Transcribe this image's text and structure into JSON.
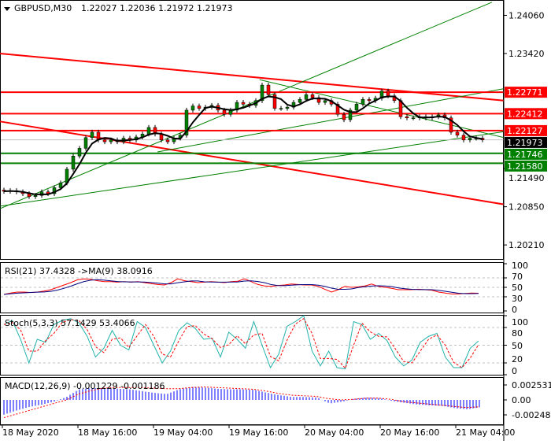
{
  "header": {
    "symbol_timeframe": "GBPUSD,M30",
    "ohlc": "1.22027 1.22036 1.21972 1.21973"
  },
  "colors": {
    "bull": "#008000",
    "bear": "#ff0000",
    "ma": "#000000",
    "rsi": "#ff0000",
    "rsi_ma": "#000080",
    "stoch_main": "#20b2aa",
    "stoch_signal": "#ff0000",
    "macd_hist": "#0000ff",
    "macd_signal": "#ff0000",
    "support": "#008000",
    "resistance": "#ff0000",
    "current_price": "#000000"
  },
  "chart_data": [
    {
      "type": "candlestick",
      "panel": "main",
      "ylim": [
        1.2008,
        1.2432
      ],
      "price_ticks": [
        "1.24060",
        "1.23420",
        "1.21490",
        "1.20850",
        "1.20210"
      ],
      "time_labels": [
        "18 May 2020",
        "18 May 16:00",
        "19 May 04:00",
        "19 May 16:00",
        "20 May 04:00",
        "20 May 16:00",
        "21 May 04:00"
      ],
      "closes": [
        1.2111,
        1.2112,
        1.211,
        1.2107,
        1.2102,
        1.2104,
        1.211,
        1.2107,
        1.2117,
        1.2125,
        1.2148,
        1.217,
        1.2183,
        1.2201,
        1.221,
        1.2197,
        1.2194,
        1.2197,
        1.2194,
        1.22,
        1.2197,
        1.2202,
        1.2207,
        1.2218,
        1.2207,
        1.2197,
        1.2194,
        1.22,
        1.2205,
        1.2247,
        1.2254,
        1.225,
        1.2252,
        1.2255,
        1.2247,
        1.224,
        1.2247,
        1.226,
        1.2257,
        1.2255,
        1.2263,
        1.2289,
        1.2273,
        1.225,
        1.225,
        1.2252,
        1.226,
        1.2265,
        1.2273,
        1.2268,
        1.226,
        1.2263,
        1.2257,
        1.224,
        1.2231,
        1.2247,
        1.2257,
        1.2265,
        1.2263,
        1.2267,
        1.2279,
        1.2271,
        1.2263,
        1.2236,
        1.2234,
        1.2234,
        1.2236,
        1.2234,
        1.2236,
        1.2239,
        1.2234,
        1.221,
        1.2205,
        1.2197,
        1.22,
        1.22,
        1.21973
      ],
      "current_price": {
        "value": 1.21973,
        "label": "1.21973"
      },
      "horizontal_levels": [
        {
          "value": 1.22771,
          "label": "1.22771",
          "kind": "resistance"
        },
        {
          "value": 1.22412,
          "label": "1.22412",
          "kind": "resistance"
        },
        {
          "value": 1.22127,
          "label": "1.22127",
          "kind": "resistance"
        },
        {
          "value": 1.21746,
          "label": "1.21746",
          "kind": "support"
        },
        {
          "value": 1.2158,
          "label": "1.21580",
          "kind": "support"
        }
      ],
      "trendlines": [
        {
          "kind": "resistance",
          "from": [
            -0.6,
            1.2342
          ],
          "to": [
            79.4,
            1.2263
          ]
        },
        {
          "kind": "resistance",
          "from": [
            -0.6,
            1.2228
          ],
          "to": [
            79.4,
            1.2089
          ]
        },
        {
          "kind": "support",
          "from": [
            -0.6,
            1.2082
          ],
          "to": [
            77.5,
            1.2428
          ]
        },
        {
          "kind": "support",
          "from": [
            -0.6,
            1.2086
          ],
          "to": [
            79.4,
            1.2211
          ]
        },
        {
          "kind": "support",
          "from": [
            24.4,
            1.2177
          ],
          "to": [
            79.4,
            1.2283
          ]
        },
        {
          "kind": "support",
          "from": [
            40.6,
            1.2298
          ],
          "to": [
            79.4,
            1.2201
          ]
        }
      ]
    },
    {
      "type": "line",
      "panel": "rsi",
      "title": "RSI(21) 37.4328  ->MA(9) 38.0916",
      "ylim": [
        0,
        100
      ],
      "ticks": [
        "100",
        "70",
        "50",
        "30",
        "0"
      ],
      "levels": [
        70,
        50,
        30
      ],
      "values": [
        35,
        38,
        40,
        40,
        39,
        40,
        42,
        45,
        50,
        55,
        60,
        66,
        68,
        67,
        64,
        62,
        62,
        61,
        62,
        61,
        62,
        60,
        58,
        56,
        55,
        60,
        68,
        64,
        62,
        60,
        61,
        62,
        61,
        60,
        62,
        63,
        68,
        62,
        56,
        53,
        52,
        54,
        55,
        57,
        56,
        55,
        55,
        52,
        46,
        40,
        45,
        52,
        50,
        51,
        53,
        57,
        52,
        50,
        48,
        45,
        45,
        45,
        46,
        45,
        44,
        40,
        38,
        36,
        36,
        37,
        38,
        37.4328
      ]
    },
    {
      "type": "line",
      "panel": "stoch",
      "title": "Stoch(5,3,3) 57.1429 53.4066",
      "ylim": [
        0,
        100
      ],
      "ticks": [
        "100",
        "80",
        "50",
        "20",
        "0"
      ],
      "levels": [
        80,
        50,
        20
      ],
      "values": [
        85,
        92,
        60,
        20,
        60,
        55,
        85,
        92,
        95,
        88,
        65,
        30,
        45,
        75,
        50,
        42,
        90,
        80,
        50,
        20,
        40,
        75,
        88,
        78,
        60,
        62,
        30,
        72,
        60,
        45,
        90,
        50,
        12,
        35,
        82,
        90,
        100,
        40,
        15,
        40,
        12,
        10,
        90,
        85,
        60,
        70,
        58,
        30,
        15,
        25,
        55,
        65,
        70,
        30,
        12,
        12,
        45,
        57.1429
      ]
    },
    {
      "type": "bar",
      "panel": "macd",
      "title": "MACD(12,26,9) -0.001229 -0.001186",
      "ylim": [
        -0.0035,
        0.0035
      ],
      "ticks": [
        "0.002531",
        "0.00",
        "-0.002488"
      ],
      "histogram": [
        -0.0025,
        -0.0018,
        -0.0012,
        -0.0008,
        -0.0003,
        0.0005,
        0.0018,
        0.002,
        0.002,
        0.0019,
        0.0018,
        0.0015,
        0.0012,
        0.001,
        0.0018,
        0.0022,
        0.0021,
        0.0019,
        0.0018,
        0.0018,
        0.0017,
        0.0012,
        0.0008,
        0.0005,
        0.0005,
        0.0004,
        -0.0006,
        -0.0003,
        0.0002,
        0.0004,
        0.0003,
        -0.0002,
        -0.0005,
        -0.0008,
        -0.0009,
        -0.001,
        -0.0014,
        -0.0016,
        -0.001229
      ],
      "signal": [
        -0.003,
        -0.0024,
        -0.0018,
        -0.0012,
        -0.0006,
        0.0,
        0.001,
        0.0016,
        0.002,
        0.0021,
        0.0021,
        0.0021,
        0.002,
        0.0019,
        0.0019,
        0.0021,
        0.0022,
        0.0021,
        0.002,
        0.0019,
        0.0018,
        0.0015,
        0.0011,
        0.0008,
        0.0007,
        0.0006,
        0.0002,
        0.0,
        0.0001,
        0.0003,
        0.0003,
        0.0001,
        -0.0003,
        -0.0005,
        -0.0007,
        -0.0009,
        -0.0011,
        -0.0013,
        -0.001186
      ]
    }
  ]
}
